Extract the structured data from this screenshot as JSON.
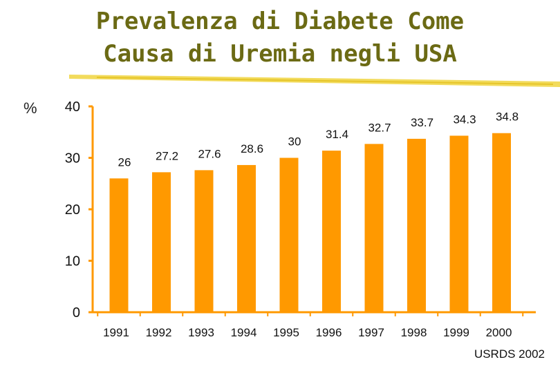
{
  "title_line1": "Prevalenza di Diabete Come",
  "title_line2": "Causa di Uremia negli USA",
  "ylabel": "%",
  "source": "USRDS 2002",
  "colors": {
    "title": "#6b6a14",
    "bar": "#ff9900",
    "axis": "#ff9900",
    "underline": "#f0d540"
  },
  "chart_data": {
    "type": "bar",
    "title": "Prevalenza di Diabete Come Causa di Uremia negli USA",
    "xlabel": "",
    "ylabel": "%",
    "ylim": [
      0,
      40
    ],
    "yticks": [
      0,
      10,
      20,
      30,
      40
    ],
    "grid": false,
    "categories": [
      "1991",
      "1992",
      "1993",
      "1994",
      "1995",
      "1996",
      "1997",
      "1998",
      "1999",
      "2000"
    ],
    "values": [
      26,
      27.2,
      27.6,
      28.6,
      30,
      31.4,
      32.7,
      33.7,
      34.3,
      34.8
    ],
    "data_labels": [
      "26",
      "27.2",
      "27.6",
      "28.6",
      "30",
      "31.4",
      "32.7",
      "33.7",
      "34.3",
      "34.8"
    ]
  }
}
